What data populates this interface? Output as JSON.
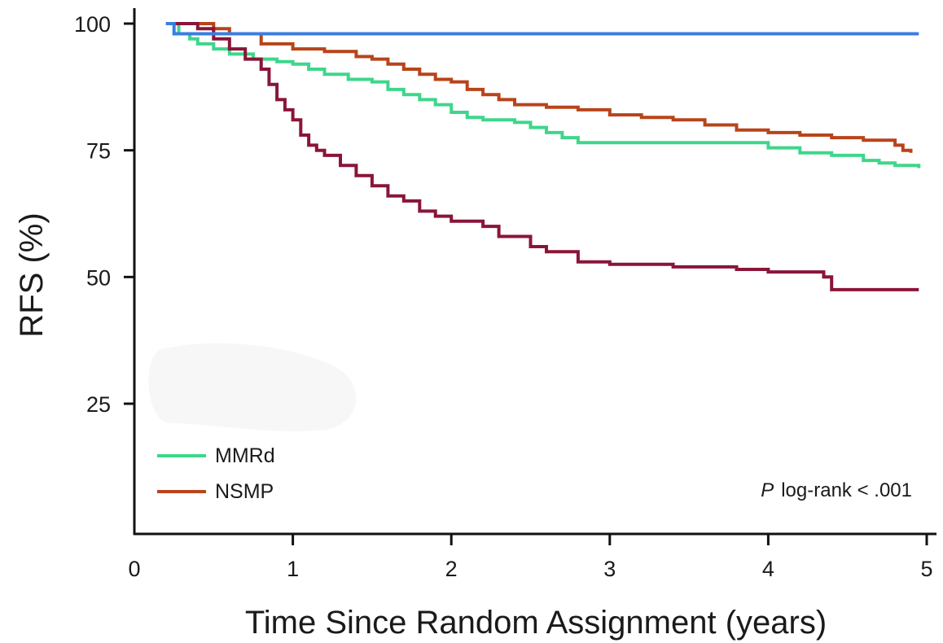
{
  "chart_data": {
    "type": "line",
    "step": true,
    "title": "",
    "xlabel": "Time Since Random Assignment (years)",
    "ylabel": "RFS (%)",
    "xlim": [
      0,
      5
    ],
    "ylim": [
      0,
      100
    ],
    "x_ticks": [
      "0",
      "1",
      "2",
      "3",
      "4",
      "5"
    ],
    "y_ticks": [
      "25",
      "50",
      "75",
      "100"
    ],
    "grid": false,
    "legend_position": "bottom-left",
    "annotation": {
      "italic": "P",
      "text": "log-rank < .001"
    },
    "series": [
      {
        "name": "MMRd",
        "color": "#3ed68b",
        "x": [
          0.2,
          0.28,
          0.35,
          0.4,
          0.5,
          0.6,
          0.75,
          0.9,
          1.0,
          1.1,
          1.2,
          1.35,
          1.5,
          1.6,
          1.7,
          1.8,
          1.9,
          2.0,
          2.1,
          2.2,
          2.4,
          2.5,
          2.6,
          2.7,
          2.8,
          3.0,
          3.2,
          3.4,
          3.6,
          3.8,
          4.0,
          4.2,
          4.4,
          4.6,
          4.7,
          4.8,
          4.95
        ],
        "y": [
          100,
          98,
          97,
          96,
          95,
          94,
          93,
          92.5,
          92,
          91,
          90,
          89,
          88.5,
          87,
          86,
          85,
          84,
          82.5,
          81.5,
          81,
          80.5,
          79.5,
          78.5,
          77.5,
          76.5,
          76.5,
          76.5,
          76.5,
          76.5,
          76.5,
          75.5,
          74.5,
          74,
          73,
          72.5,
          72,
          71.5
        ]
      },
      {
        "name": "NSMP",
        "color": "#b8441a",
        "x": [
          0.2,
          0.5,
          0.6,
          0.8,
          1.0,
          1.2,
          1.4,
          1.5,
          1.6,
          1.7,
          1.8,
          1.9,
          2.0,
          2.1,
          2.2,
          2.3,
          2.4,
          2.6,
          2.8,
          3.0,
          3.2,
          3.4,
          3.6,
          3.8,
          4.0,
          4.2,
          4.4,
          4.6,
          4.8,
          4.85,
          4.9
        ],
        "y": [
          100,
          99,
          98,
          96,
          95,
          94.5,
          93.5,
          93,
          92,
          91,
          90,
          89,
          88.5,
          87,
          86,
          85,
          84,
          83.5,
          83,
          82,
          81.5,
          81,
          80,
          79,
          78.5,
          78,
          77.5,
          77,
          76,
          75,
          74.5
        ]
      },
      {
        "color": "#8a1538",
        "x": [
          0.2,
          0.4,
          0.5,
          0.6,
          0.7,
          0.8,
          0.85,
          0.9,
          0.95,
          1.0,
          1.05,
          1.1,
          1.15,
          1.2,
          1.3,
          1.4,
          1.5,
          1.6,
          1.7,
          1.8,
          1.9,
          2.0,
          2.2,
          2.3,
          2.5,
          2.6,
          2.8,
          3.0,
          3.2,
          3.4,
          3.6,
          3.8,
          4.0,
          4.2,
          4.35,
          4.4,
          4.95
        ],
        "y": [
          100,
          99,
          97,
          95,
          93,
          91,
          88,
          85,
          83,
          81,
          78,
          76,
          75,
          74,
          72,
          70,
          68,
          66,
          65,
          63,
          62,
          61,
          60,
          58,
          56,
          55,
          53,
          52.5,
          52.5,
          52,
          52,
          51.5,
          51,
          51,
          50,
          47.5,
          47.5
        ]
      },
      {
        "color": "#3a7ee0",
        "x": [
          0.2,
          0.25,
          4.95
        ],
        "y": [
          100,
          98,
          98
        ]
      }
    ]
  }
}
